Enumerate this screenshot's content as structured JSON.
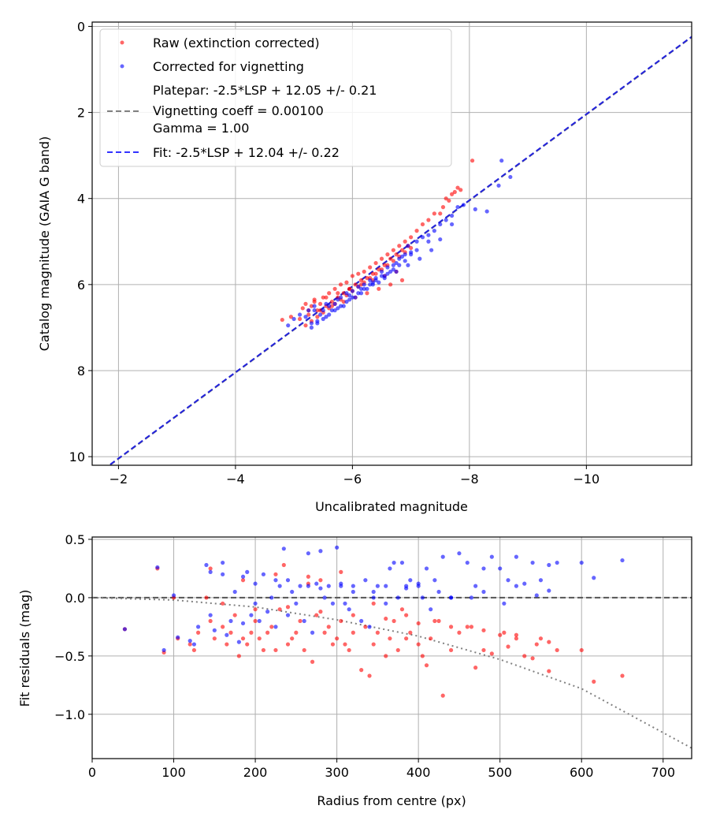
{
  "chart_data": [
    {
      "type": "scatter",
      "xlabel": "Uncalibrated magnitude",
      "ylabel": "Catalog magnitude (GAIA G band)",
      "xlim": [
        -1.55,
        -11.8
      ],
      "ylim": [
        10.2,
        -0.1
      ],
      "x_inverted": true,
      "y_inverted": true,
      "x_ticks": [
        -2,
        -4,
        -6,
        -8,
        -10
      ],
      "x_tick_labels": [
        "−2",
        "−4",
        "−6",
        "−8",
        "−10"
      ],
      "y_ticks": [
        0,
        2,
        4,
        6,
        8,
        10
      ],
      "y_tick_labels": [
        "0",
        "2",
        "4",
        "6",
        "8",
        "10"
      ],
      "grid": true,
      "legend_position": "top-left",
      "legend": [
        {
          "label": "Raw (extinction corrected)",
          "marker": "dot",
          "color": "#ff0000"
        },
        {
          "label": "Corrected for vignetting",
          "marker": "dot",
          "color": "#0000ff"
        },
        {
          "label_lines": [
            "Platepar: -2.5*LSP + 12.05 +/- 0.21",
            "Vignetting coeff = 0.00100",
            "Gamma = 1.00"
          ],
          "marker": "dashed",
          "color": "#808080"
        },
        {
          "label": "Fit: -2.5*LSP + 12.04 +/- 0.22",
          "marker": "dashed",
          "color": "#3333ff"
        }
      ],
      "lines": [
        {
          "name": "Platepar",
          "slope": 1.0,
          "intercept": 12.05,
          "style": "dashed",
          "color": "#808080"
        },
        {
          "name": "Fit",
          "slope": 1.0,
          "intercept": 12.04,
          "style": "dashed",
          "color": "#2222dd"
        }
      ],
      "series": [
        {
          "name": "Raw (extinction corrected)",
          "color": "#ff0000",
          "x": [
            -4.8,
            -4.95,
            -5.1,
            -5.15,
            -5.2,
            -5.25,
            -5.3,
            -5.35,
            -5.4,
            -5.45,
            -5.5,
            -5.55,
            -5.6,
            -5.65,
            -5.7,
            -5.75,
            -5.8,
            -5.85,
            -5.9,
            -5.95,
            -6.0,
            -6.05,
            -6.1,
            -6.15,
            -6.2,
            -6.25,
            -6.3,
            -6.35,
            -6.4,
            -6.45,
            -6.5,
            -6.55,
            -6.6,
            -6.65,
            -6.7,
            -6.75,
            -6.8,
            -6.85,
            -6.9,
            -6.95,
            -7.0,
            -7.1,
            -7.2,
            -7.3,
            -7.4,
            -7.5,
            -7.55,
            -7.6,
            -7.65,
            -7.7,
            -7.75,
            -7.8,
            -7.85,
            -8.05,
            -5.2,
            -5.3,
            -5.4,
            -5.5,
            -5.6,
            -5.7,
            -5.8,
            -5.9,
            -6.0,
            -6.1,
            -6.2,
            -6.3,
            -6.4,
            -6.5,
            -6.6,
            -6.7,
            -6.8,
            -6.9,
            -7.0,
            -5.25,
            -5.45,
            -5.65,
            -5.85,
            -6.05,
            -6.25,
            -6.45,
            -6.65,
            -6.85,
            -5.35,
            -5.55,
            -5.75,
            -5.95,
            -6.15,
            -6.35,
            -6.55,
            -6.75
          ],
          "y": [
            6.82,
            6.75,
            6.8,
            6.55,
            6.45,
            6.6,
            6.5,
            6.35,
            6.6,
            6.45,
            6.3,
            6.5,
            6.2,
            6.4,
            6.1,
            6.3,
            6.0,
            6.2,
            5.95,
            6.1,
            5.8,
            6.0,
            5.75,
            5.9,
            5.7,
            5.85,
            5.6,
            5.75,
            5.5,
            5.65,
            5.4,
            5.55,
            5.3,
            5.4,
            5.2,
            5.3,
            5.1,
            5.2,
            5.0,
            5.1,
            4.9,
            4.75,
            4.6,
            4.5,
            4.35,
            4.35,
            4.2,
            4.0,
            4.05,
            3.9,
            3.85,
            3.75,
            3.8,
            3.12,
            6.95,
            6.85,
            6.75,
            6.65,
            6.55,
            6.45,
            6.35,
            6.25,
            6.15,
            6.05,
            5.95,
            5.85,
            5.75,
            5.65,
            5.55,
            5.45,
            5.35,
            5.25,
            5.15,
            6.7,
            6.6,
            6.5,
            6.4,
            6.3,
            6.2,
            6.1,
            6.0,
            5.9,
            6.4,
            6.3,
            6.2,
            6.1,
            6.0,
            5.9,
            5.8,
            5.7
          ]
        },
        {
          "name": "Corrected for vignetting",
          "color": "#0000ff",
          "x": [
            -4.9,
            -5.0,
            -5.1,
            -5.2,
            -5.25,
            -5.3,
            -5.35,
            -5.4,
            -5.45,
            -5.5,
            -5.55,
            -5.6,
            -5.65,
            -5.7,
            -5.75,
            -5.8,
            -5.85,
            -5.9,
            -5.95,
            -6.0,
            -6.05,
            -6.1,
            -6.15,
            -6.2,
            -6.25,
            -6.3,
            -6.35,
            -6.4,
            -6.45,
            -6.5,
            -6.55,
            -6.6,
            -6.65,
            -6.7,
            -6.75,
            -6.8,
            -6.85,
            -6.9,
            -6.95,
            -7.0,
            -7.1,
            -7.2,
            -7.3,
            -7.4,
            -7.5,
            -7.6,
            -7.7,
            -7.8,
            -7.9,
            -8.1,
            -8.3,
            -8.5,
            -8.55,
            -8.7,
            -5.3,
            -5.4,
            -5.5,
            -5.6,
            -5.7,
            -5.8,
            -5.9,
            -6.0,
            -6.1,
            -6.2,
            -6.3,
            -6.4,
            -6.5,
            -6.6,
            -6.7,
            -6.8,
            -6.9,
            -7.0,
            -7.1,
            -7.3,
            -7.5,
            -7.7,
            -5.35,
            -5.55,
            -5.75,
            -5.95,
            -6.15,
            -6.35,
            -6.55,
            -6.75,
            -6.95,
            -7.15,
            -7.35
          ],
          "y": [
            6.95,
            6.8,
            6.7,
            6.75,
            6.6,
            6.9,
            6.5,
            6.85,
            6.7,
            6.6,
            6.75,
            6.5,
            6.6,
            6.45,
            6.55,
            6.3,
            6.5,
            6.2,
            6.35,
            6.15,
            6.3,
            6.05,
            6.2,
            6.0,
            6.1,
            5.9,
            6.0,
            5.85,
            5.95,
            5.7,
            5.8,
            5.6,
            5.7,
            5.55,
            5.5,
            5.4,
            5.35,
            5.3,
            5.1,
            5.25,
            5.0,
            4.9,
            4.85,
            4.75,
            4.6,
            4.5,
            4.4,
            4.2,
            4.15,
            4.25,
            4.3,
            3.7,
            3.12,
            3.5,
            7.0,
            6.9,
            6.8,
            6.7,
            6.6,
            6.5,
            6.4,
            6.3,
            6.2,
            6.1,
            6.0,
            5.9,
            5.8,
            5.75,
            5.65,
            5.55,
            5.45,
            5.3,
            5.2,
            5.0,
            4.95,
            4.6,
            6.6,
            6.45,
            6.35,
            6.25,
            6.1,
            5.95,
            5.85,
            5.7,
            5.55,
            5.4,
            5.2
          ]
        }
      ]
    },
    {
      "type": "scatter",
      "xlabel": "Radius from centre (px)",
      "ylabel": "Fit residuals (mag)",
      "xlim": [
        0,
        735
      ],
      "ylim": [
        -1.38,
        0.52
      ],
      "x_ticks": [
        0,
        100,
        200,
        300,
        400,
        500,
        600,
        700
      ],
      "x_tick_labels": [
        "0",
        "100",
        "200",
        "300",
        "400",
        "500",
        "600",
        "700"
      ],
      "y_ticks": [
        0.5,
        0.0,
        -0.5,
        -1.0
      ],
      "y_tick_labels": [
        "0.5",
        "0.0",
        "−0.5",
        "−1.0"
      ],
      "grid": true,
      "lines": [
        {
          "name": "zero",
          "y": 0.0,
          "style": "dashed",
          "color": "#555555"
        },
        {
          "name": "vignetting model",
          "style": "dotted",
          "color": "#808080",
          "points": [
            [
              0,
              0
            ],
            [
              100,
              -0.02
            ],
            [
              200,
              -0.08
            ],
            [
              300,
              -0.19
            ],
            [
              400,
              -0.33
            ],
            [
              500,
              -0.53
            ],
            [
              600,
              -0.78
            ],
            [
              735,
              -1.29
            ]
          ]
        }
      ],
      "series": [
        {
          "name": "Raw (extinction corrected)",
          "color": "#ff0000",
          "x": [
            40,
            80,
            88,
            100,
            105,
            120,
            125,
            130,
            140,
            145,
            150,
            160,
            165,
            170,
            175,
            180,
            185,
            190,
            195,
            200,
            205,
            210,
            215,
            220,
            225,
            230,
            235,
            240,
            245,
            250,
            255,
            260,
            265,
            270,
            275,
            280,
            285,
            290,
            295,
            300,
            305,
            310,
            315,
            320,
            330,
            335,
            340,
            345,
            350,
            360,
            365,
            370,
            375,
            380,
            385,
            390,
            400,
            405,
            410,
            415,
            420,
            430,
            440,
            450,
            460,
            470,
            480,
            490,
            500,
            510,
            520,
            530,
            540,
            550,
            560,
            570,
            600,
            615,
            650,
            145,
            185,
            225,
            265,
            305,
            345,
            385,
            425,
            465,
            505,
            545,
            160,
            200,
            240,
            280,
            320,
            360,
            400,
            440,
            480,
            520,
            560
          ],
          "y": [
            -0.27,
            0.25,
            -0.47,
            0.0,
            -0.35,
            -0.4,
            -0.45,
            -0.3,
            0.0,
            -0.2,
            -0.35,
            -0.25,
            -0.4,
            -0.3,
            -0.15,
            -0.5,
            -0.35,
            -0.4,
            -0.3,
            -0.2,
            -0.35,
            -0.45,
            -0.3,
            -0.25,
            -0.45,
            -0.1,
            0.28,
            -0.4,
            -0.35,
            -0.3,
            -0.2,
            -0.45,
            0.12,
            -0.55,
            -0.15,
            0.15,
            -0.3,
            -0.25,
            -0.4,
            -0.35,
            -0.2,
            -0.4,
            -0.45,
            -0.3,
            -0.62,
            -0.25,
            -0.67,
            -0.4,
            -0.3,
            -0.5,
            -0.35,
            -0.2,
            -0.45,
            -0.1,
            -0.35,
            -0.3,
            -0.4,
            -0.5,
            -0.58,
            -0.35,
            -0.2,
            -0.84,
            -0.45,
            -0.3,
            -0.25,
            -0.6,
            -0.45,
            -0.48,
            -0.32,
            -0.42,
            -0.35,
            -0.5,
            -0.52,
            -0.35,
            -0.63,
            -0.45,
            -0.45,
            -0.72,
            -0.67,
            0.25,
            0.15,
            0.2,
            0.18,
            0.22,
            -0.05,
            -0.15,
            -0.2,
            -0.25,
            -0.3,
            -0.4,
            -0.05,
            -0.1,
            -0.08,
            -0.12,
            -0.15,
            -0.18,
            -0.22,
            -0.25,
            -0.28,
            -0.32,
            -0.38
          ]
        },
        {
          "name": "Corrected for vignetting",
          "color": "#0000ff",
          "x": [
            40,
            80,
            88,
            100,
            105,
            120,
            125,
            130,
            140,
            145,
            150,
            160,
            165,
            170,
            175,
            180,
            185,
            190,
            195,
            200,
            205,
            210,
            215,
            220,
            225,
            230,
            235,
            240,
            245,
            250,
            255,
            260,
            265,
            270,
            275,
            280,
            285,
            290,
            295,
            300,
            305,
            310,
            315,
            320,
            330,
            335,
            340,
            345,
            350,
            360,
            365,
            370,
            375,
            380,
            385,
            390,
            400,
            405,
            410,
            415,
            420,
            430,
            440,
            450,
            460,
            470,
            480,
            490,
            500,
            510,
            520,
            530,
            540,
            550,
            560,
            570,
            600,
            615,
            650,
            145,
            185,
            225,
            265,
            305,
            345,
            385,
            425,
            465,
            505,
            545,
            160,
            200,
            240,
            280,
            320,
            360,
            400,
            440,
            480,
            520,
            560
          ],
          "y": [
            -0.27,
            0.26,
            -0.45,
            0.02,
            -0.34,
            -0.37,
            -0.4,
            -0.25,
            0.28,
            -0.15,
            -0.28,
            0.3,
            -0.32,
            -0.2,
            0.05,
            -0.38,
            -0.22,
            0.22,
            -0.15,
            -0.05,
            -0.2,
            0.2,
            -0.12,
            0.0,
            -0.25,
            0.1,
            0.42,
            -0.15,
            0.05,
            -0.05,
            0.1,
            -0.2,
            0.38,
            -0.3,
            0.12,
            0.4,
            0.0,
            0.1,
            -0.05,
            0.43,
            0.1,
            -0.05,
            -0.1,
            0.1,
            -0.2,
            0.15,
            -0.25,
            0.0,
            0.1,
            -0.05,
            0.25,
            0.3,
            0.0,
            0.3,
            0.1,
            0.15,
            0.1,
            0.0,
            0.25,
            -0.1,
            0.15,
            0.35,
            0.0,
            0.38,
            0.3,
            0.1,
            0.25,
            0.35,
            0.25,
            0.15,
            0.35,
            0.12,
            0.3,
            0.15,
            0.28,
            0.3,
            0.3,
            0.17,
            0.32,
            0.22,
            0.18,
            0.15,
            0.1,
            0.12,
            0.05,
            0.08,
            0.05,
            0.0,
            -0.05,
            0.02,
            0.2,
            0.12,
            0.15,
            0.08,
            0.05,
            0.1,
            0.12,
            0.0,
            0.05,
            0.1,
            0.06
          ]
        }
      ]
    }
  ]
}
